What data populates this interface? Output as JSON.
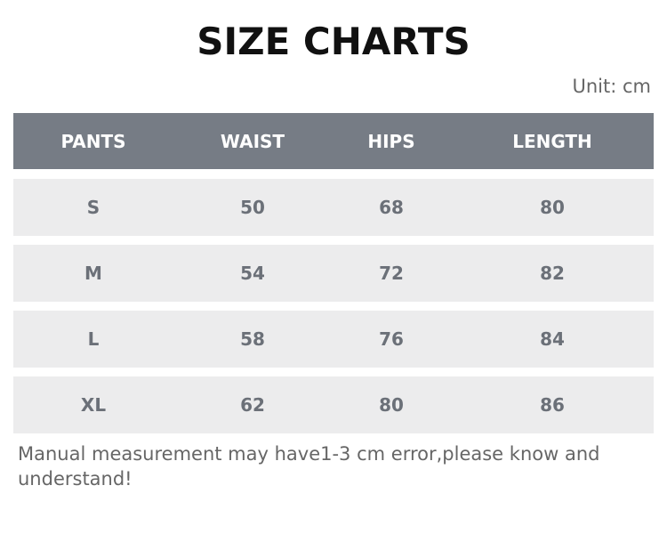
{
  "title": "SIZE CHARTS",
  "unit": "Unit: cm",
  "headers": [
    "PANTS",
    "WAIST",
    "HIPS",
    "LENGTH"
  ],
  "rows": [
    [
      "S",
      "50",
      "68",
      "80"
    ],
    [
      "M",
      "54",
      "72",
      "82"
    ],
    [
      "L",
      "58",
      "76",
      "84"
    ],
    [
      "XL",
      "62",
      "80",
      "86"
    ]
  ],
  "note": "Manual measurement may have1-3 cm error,please know and understand!",
  "colors": {
    "header_bg": "#767c85",
    "row_bg": "#ececed",
    "row_text": "#6b7078"
  }
}
